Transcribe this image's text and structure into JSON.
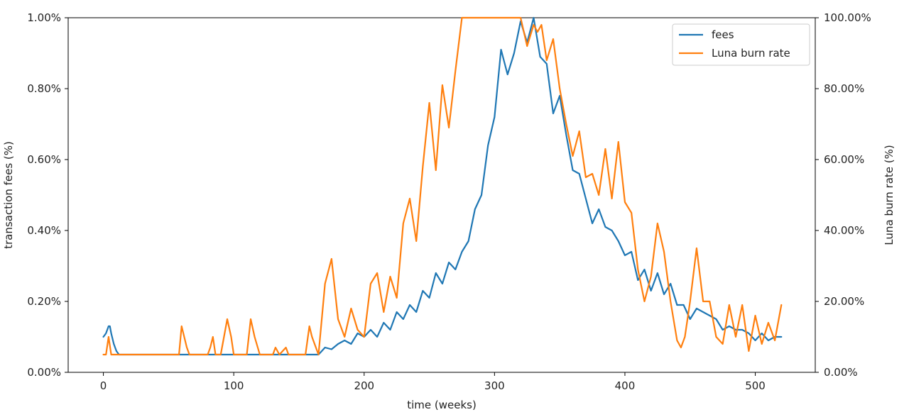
{
  "chart_data": {
    "type": "line",
    "xlabel": "time (weeks)",
    "ylabel_left": "transaction fees (%)",
    "ylabel_right": "Luna burn rate (%)",
    "xlim": [
      -27,
      546
    ],
    "ylim_left": [
      0,
      1.0
    ],
    "ylim_right": [
      0,
      100
    ],
    "x_ticks": [
      0,
      100,
      200,
      300,
      400,
      500
    ],
    "x_tick_labels": [
      "0",
      "100",
      "200",
      "300",
      "400",
      "500"
    ],
    "y_left_ticks": [
      0,
      0.2,
      0.4,
      0.6,
      0.8,
      1.0
    ],
    "y_left_tick_labels": [
      "0.00%",
      "0.20%",
      "0.40%",
      "0.60%",
      "0.80%",
      "1.00%"
    ],
    "y_right_ticks": [
      0,
      20,
      40,
      60,
      80,
      100
    ],
    "y_right_tick_labels": [
      "0.00%",
      "20.00%",
      "40.00%",
      "60.00%",
      "80.00%",
      "100.00%"
    ],
    "grid": false,
    "legend_position": "top-right",
    "series": [
      {
        "name": "fees",
        "axis": "left",
        "color": "#1f77b4",
        "x": [
          0,
          2,
          4,
          5,
          6,
          8,
          10,
          12,
          20,
          40,
          60,
          80,
          100,
          120,
          140,
          160,
          165,
          170,
          175,
          180,
          185,
          190,
          195,
          200,
          205,
          210,
          215,
          220,
          225,
          230,
          235,
          240,
          245,
          250,
          255,
          260,
          265,
          270,
          275,
          280,
          285,
          290,
          295,
          300,
          305,
          310,
          315,
          320,
          325,
          330,
          335,
          340,
          345,
          350,
          355,
          360,
          365,
          370,
          375,
          380,
          385,
          390,
          395,
          400,
          405,
          410,
          415,
          420,
          425,
          430,
          435,
          440,
          445,
          450,
          455,
          460,
          465,
          470,
          475,
          480,
          485,
          490,
          495,
          500,
          505,
          510,
          515,
          520
        ],
        "y": [
          0.1,
          0.11,
          0.13,
          0.13,
          0.11,
          0.08,
          0.06,
          0.05,
          0.05,
          0.05,
          0.05,
          0.05,
          0.05,
          0.05,
          0.05,
          0.05,
          0.05,
          0.07,
          0.065,
          0.08,
          0.09,
          0.08,
          0.11,
          0.1,
          0.12,
          0.1,
          0.14,
          0.12,
          0.17,
          0.15,
          0.19,
          0.17,
          0.23,
          0.21,
          0.28,
          0.25,
          0.31,
          0.29,
          0.34,
          0.37,
          0.46,
          0.5,
          0.64,
          0.72,
          0.91,
          0.84,
          0.9,
          0.99,
          0.93,
          1.0,
          0.89,
          0.87,
          0.73,
          0.78,
          0.67,
          0.57,
          0.56,
          0.49,
          0.42,
          0.46,
          0.41,
          0.4,
          0.37,
          0.33,
          0.34,
          0.26,
          0.29,
          0.23,
          0.28,
          0.22,
          0.25,
          0.19,
          0.19,
          0.15,
          0.18,
          0.17,
          0.16,
          0.15,
          0.12,
          0.13,
          0.12,
          0.12,
          0.11,
          0.09,
          0.11,
          0.09,
          0.1,
          0.1
        ]
      },
      {
        "name": "Luna burn rate",
        "axis": "right",
        "color": "#ff7f0e",
        "x": [
          0,
          2,
          4,
          6,
          8,
          10,
          50,
          55,
          58,
          60,
          62,
          64,
          66,
          75,
          80,
          82,
          84,
          86,
          90,
          95,
          98,
          100,
          105,
          110,
          113,
          116,
          120,
          125,
          130,
          132,
          135,
          140,
          142,
          145,
          150,
          155,
          158,
          160,
          165,
          170,
          175,
          180,
          185,
          190,
          195,
          200,
          205,
          210,
          215,
          220,
          225,
          230,
          235,
          240,
          245,
          250,
          255,
          260,
          265,
          270,
          275,
          278,
          280,
          285,
          290,
          295,
          300,
          305,
          310,
          315,
          318,
          320,
          325,
          330,
          333,
          336,
          340,
          345,
          350,
          355,
          360,
          365,
          370,
          375,
          380,
          385,
          390,
          395,
          400,
          405,
          410,
          415,
          420,
          425,
          430,
          435,
          440,
          443,
          446,
          450,
          455,
          460,
          465,
          470,
          475,
          480,
          485,
          490,
          495,
          500,
          505,
          510,
          515,
          520
        ],
        "y": [
          5,
          5,
          10,
          5,
          5,
          5,
          5,
          5,
          5,
          13,
          10,
          7,
          5,
          5,
          5,
          7,
          10,
          5,
          5,
          15,
          10,
          5,
          5,
          5,
          15,
          10,
          5,
          5,
          5,
          7,
          5,
          7,
          5,
          5,
          5,
          5,
          13,
          10,
          5,
          25,
          32,
          15,
          10,
          18,
          12,
          10,
          25,
          28,
          17,
          27,
          21,
          42,
          49,
          37,
          58,
          76,
          57,
          81,
          69,
          85,
          100,
          100,
          100,
          100,
          100,
          100,
          100,
          100,
          100,
          100,
          100,
          100,
          92,
          98,
          96,
          98,
          88,
          94,
          80,
          70,
          61,
          68,
          55,
          56,
          50,
          63,
          49,
          65,
          48,
          45,
          29,
          20,
          27,
          42,
          34,
          20,
          9,
          7,
          10,
          20,
          35,
          20,
          20,
          10,
          8,
          19,
          10,
          19,
          6,
          16,
          8,
          14,
          9,
          19
        ]
      }
    ]
  },
  "legend": {
    "items": [
      {
        "label": "fees",
        "color": "#1f77b4"
      },
      {
        "label": "Luna burn rate",
        "color": "#ff7f0e"
      }
    ]
  }
}
